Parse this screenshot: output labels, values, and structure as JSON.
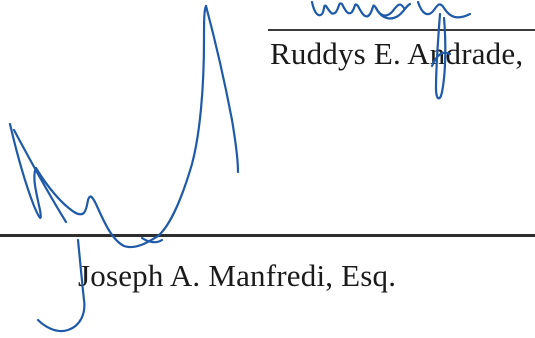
{
  "signatories": [
    {
      "name": "Ruddys E. Andrade,"
    },
    {
      "name": "Joseph A. Manfredi, Esq."
    }
  ],
  "colors": {
    "ink": "#1f5aa8",
    "text": "#1a1a1a",
    "rule": "#3a3a3a"
  }
}
